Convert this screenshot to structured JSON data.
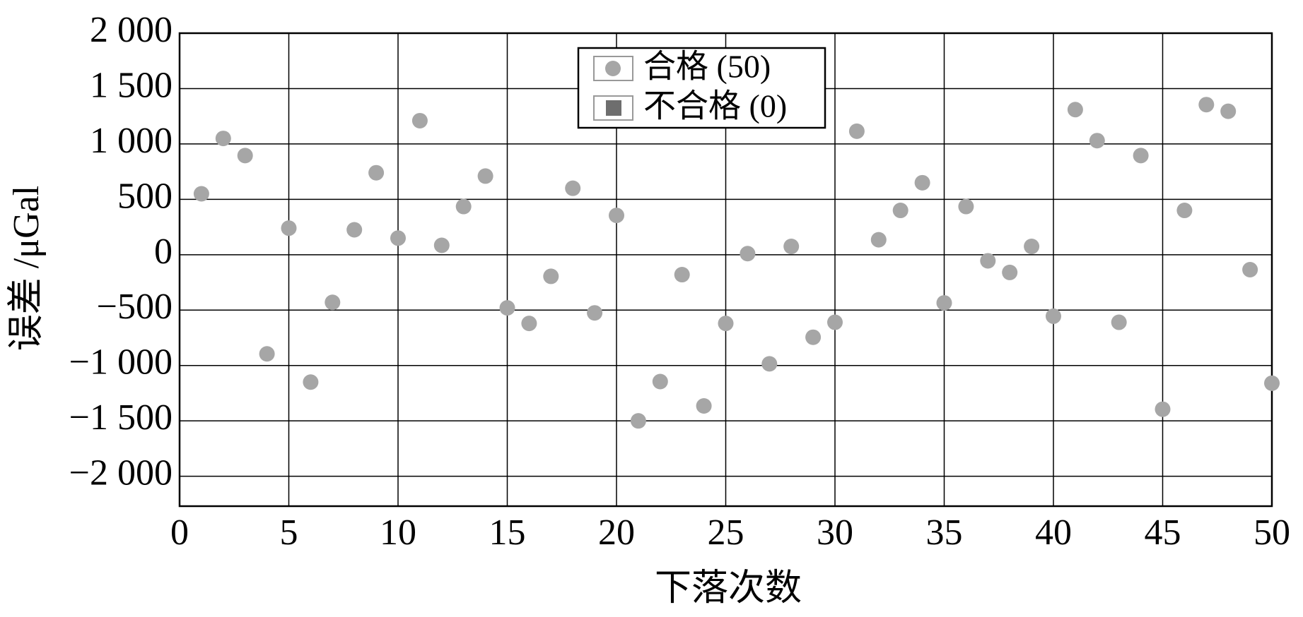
{
  "chart_data": {
    "type": "scatter",
    "x_label": "下落次数",
    "y_label": "误差 /μGal",
    "x": [
      1,
      2,
      3,
      4,
      5,
      6,
      7,
      8,
      9,
      10,
      11,
      12,
      13,
      14,
      15,
      16,
      17,
      18,
      19,
      20,
      21,
      22,
      23,
      24,
      25,
      26,
      27,
      28,
      29,
      30,
      31,
      32,
      33,
      34,
      35,
      36,
      37,
      38,
      39,
      40,
      41,
      42,
      43,
      44,
      45,
      46,
      47,
      48,
      49,
      50
    ],
    "series": [
      {
        "name": "合格 (50)",
        "color": "#a6a6a6",
        "marker": "circle",
        "values": [
          550,
          1050,
          895,
          -895,
          240,
          -1150,
          -430,
          225,
          740,
          150,
          1210,
          85,
          435,
          710,
          -480,
          -620,
          -195,
          600,
          -525,
          355,
          -1500,
          -1145,
          -180,
          -1365,
          -620,
          10,
          -985,
          75,
          -745,
          -610,
          1115,
          135,
          400,
          650,
          -435,
          435,
          -55,
          -160,
          75,
          -555,
          1310,
          1030,
          -610,
          895,
          -1395,
          400,
          1355,
          1295,
          -135,
          -1160
        ]
      },
      {
        "name": "不合格 (0)",
        "color": "#6e6e6e",
        "marker": "square",
        "values": []
      }
    ],
    "xlim": [
      0,
      50
    ],
    "xticks": [
      0,
      5,
      10,
      15,
      20,
      25,
      30,
      35,
      40,
      45,
      50
    ],
    "ylim": [
      -2270,
      2000
    ],
    "yticks": [
      {
        "value": -2000,
        "label": "−2 000"
      },
      {
        "value": -1500,
        "label": "−1 500"
      },
      {
        "value": -1000,
        "label": "−1 000"
      },
      {
        "value": -500,
        "label": "−500"
      },
      0,
      500,
      {
        "value": 1000,
        "label": "1 000"
      },
      {
        "value": 1500,
        "label": "1 500"
      },
      {
        "value": 2000,
        "label": "2 000"
      }
    ],
    "grid": true,
    "legend": "top-center"
  }
}
